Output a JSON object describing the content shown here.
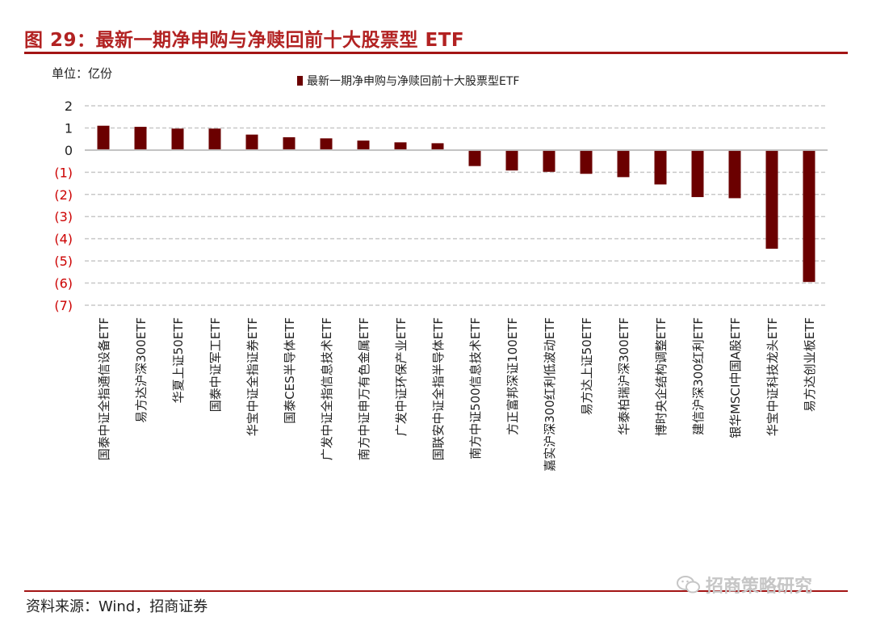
{
  "figure": {
    "title": "图 29：最新一期净申购与净赎回前十大股票型 ETF",
    "unit": "单位：亿份",
    "source": "资料来源：Wind，招商证券",
    "watermark": "招商策略研究"
  },
  "colors": {
    "bar": "#6b0000",
    "negative_tick": "#cc0000",
    "title": "#b22222",
    "rule": "#a31515",
    "grid": "#c8c8c8"
  },
  "chart_data": {
    "type": "bar",
    "categories": [
      "国泰中证全指通信设备ETF",
      "易方达沪深300ETF",
      "华夏上证50ETF",
      "国泰中证军工ETF",
      "华宝中证全指证券ETF",
      "国泰CES半导体ETF",
      "广发中证全指信息技术ETF",
      "南方中证申万有色金属ETF",
      "广发中证环保产业ETF",
      "国联安中证全指半导体ETF",
      "南方中证500信息技术ETF",
      "方正富邦深证100ETF",
      "嘉实沪深300红利低波动ETF",
      "易方达上证50ETF",
      "华泰柏瑞沪深300ETF",
      "博时央企结构调整ETF",
      "建信沪深300红利ETF",
      "银华MSCI中国A股ETF",
      "华宝中证科技龙头ETF",
      "易方达创业板ETF"
    ],
    "series": [
      {
        "name": "最新一期净申购与净赎回前十大股票型ETF",
        "values": [
          1.1,
          1.05,
          0.97,
          0.97,
          0.7,
          0.58,
          0.53,
          0.43,
          0.35,
          0.31,
          -0.72,
          -0.92,
          -0.98,
          -1.07,
          -1.22,
          -1.55,
          -2.12,
          -2.17,
          -4.45,
          -5.95
        ]
      }
    ],
    "ylim": [
      -7,
      2
    ],
    "yticks": [
      2,
      1,
      0,
      -1,
      -2,
      -3,
      -4,
      -5,
      -6,
      -7
    ],
    "ytick_labels": [
      "2",
      "1",
      "0",
      "(1)",
      "(2)",
      "(3)",
      "(4)",
      "(5)",
      "(6)",
      "(7)"
    ],
    "grid": true,
    "legend_position": "top"
  }
}
